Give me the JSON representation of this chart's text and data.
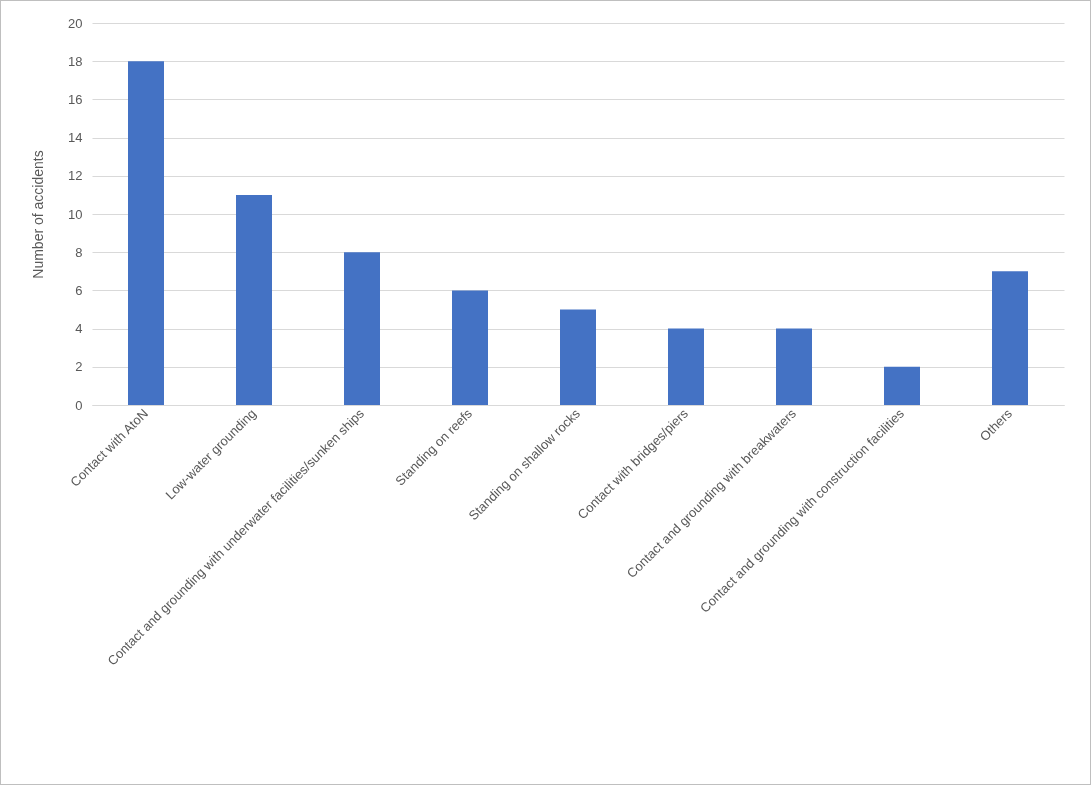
{
  "chart_data": {
    "type": "bar",
    "ylabel": "Number of accidents",
    "categories": [
      "Contact with AtoN",
      "Low-water grounding",
      "Contact and grounding with underwater facilities/sunken ships",
      "Standing on reefs",
      "Standing on shallow rocks",
      "Contact with bridges/piers",
      "Contact and grounding with breakwaters",
      "Contact and grounding with construction facilities",
      "Others"
    ],
    "values": [
      18,
      11,
      8,
      6,
      5,
      4,
      4,
      2,
      7
    ],
    "color": "#4472c4",
    "ylim": [
      0,
      20
    ],
    "yticks": [
      0,
      2,
      4,
      6,
      8,
      10,
      12,
      14,
      16,
      18,
      20
    ],
    "grid": "y"
  }
}
